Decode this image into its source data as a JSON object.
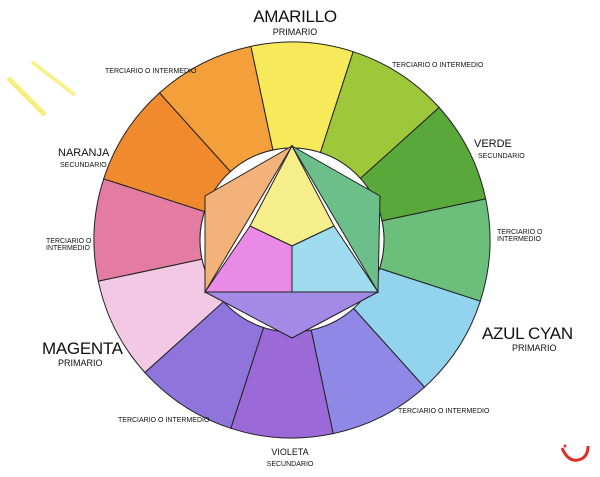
{
  "labels": {
    "amarillo": {
      "name": "AMARILLO",
      "type": "PRIMARIO"
    },
    "verde": {
      "name": "VERDE",
      "type": "SECUNDARIO"
    },
    "azul_cyan": {
      "name": "AZUL CYAN",
      "type": "PRIMARIO"
    },
    "violeta": {
      "name": "VIOLETA",
      "type": "SECUNDARIO"
    },
    "magenta": {
      "name": "MAGENTA",
      "type": "PRIMARIO"
    },
    "naranja": {
      "name": "NARANJA",
      "type": "SECUNDARIO"
    },
    "terciario_top_left": "TERCIARIO O INTERMEDIO",
    "terciario_top_right": "TERCIARIO O INTERMEDIO",
    "terciario_right_1": "TERCIARIO O",
    "terciario_right_2": "INTERMEDIO",
    "terciario_left_1": "TERCIARIO O",
    "terciario_left_2": "INTERMEDIO",
    "terciario_bottom_left": "TERCIARIO O INTERMEDIO",
    "terciario_bottom_right": "TERCIARIO O INTERMEDIO"
  },
  "segment_colors": [
    "#f7ea5a",
    "#9cc83a",
    "#58a83a",
    "#6bbf7a",
    "#92d4ee",
    "#8f88e6",
    "#9b6ad8",
    "#8f74dc",
    "#f2c8e4",
    "#e47ca2",
    "#f08a2c",
    "#f3a03a"
  ],
  "inner_colors": {
    "yellow": "#f6ee8a",
    "magenta": "#e98ae6",
    "cyan": "#9fdcf0",
    "orange": "#f3b27a",
    "green": "#6cbf88",
    "violet": "#a38ae6"
  },
  "logo": "logo-mark",
  "logo_color": "#e0302a"
}
